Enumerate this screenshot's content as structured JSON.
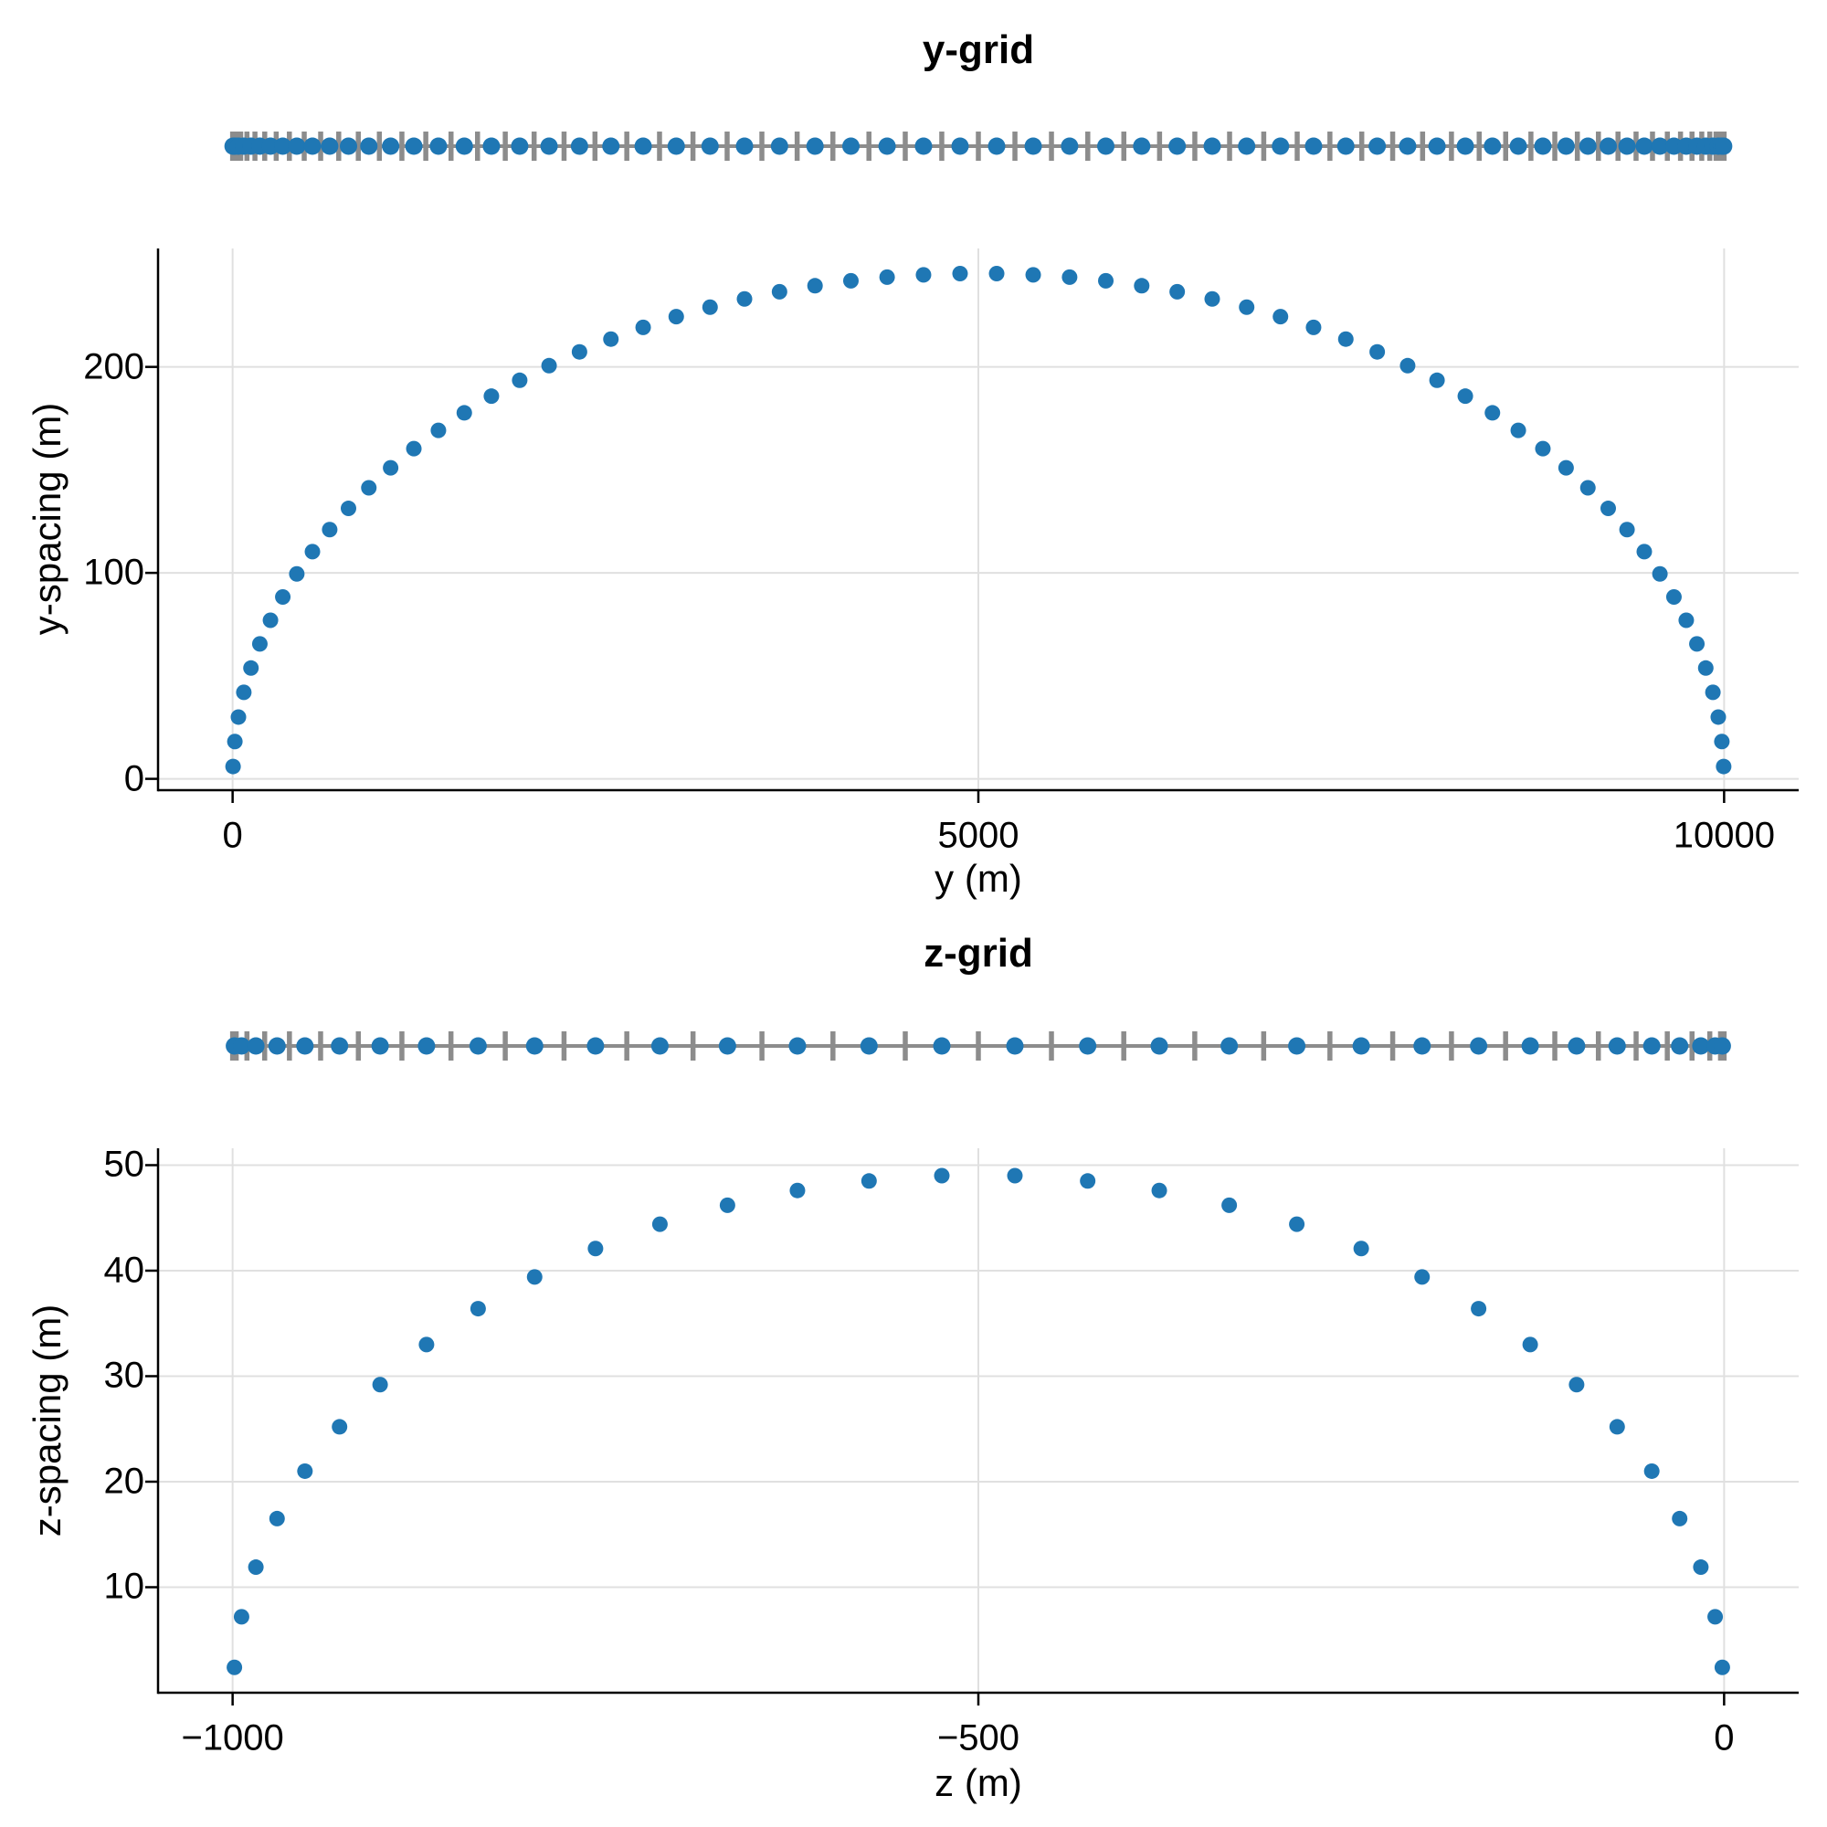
{
  "colors": {
    "marker": "#1f77b4",
    "strip_gray": "#8c8c8c",
    "gridline": "#e0e0e0",
    "axis": "#000000",
    "text": "#000000",
    "background": "#ffffff"
  },
  "chart_data": [
    {
      "type": "scatter",
      "title": "y-grid",
      "xlabel": "y (m)",
      "ylabel": "y-spacing (m)",
      "xlim": [
        -500,
        10500
      ],
      "ylim": [
        -5.5,
        257.5
      ],
      "xticks": [
        0,
        5000,
        10000
      ],
      "xtick_labels": [
        "0",
        "5000",
        "10000"
      ],
      "yticks": [
        0,
        100,
        200
      ],
      "ytick_labels": [
        "0",
        "100",
        "200"
      ],
      "grid": true,
      "legend": null,
      "x": [
        3.0,
        15.1,
        39.1,
        75.1,
        123.0,
        182.6,
        253.8,
        336.4,
        430.3,
        535.2,
        650.9,
        777.0,
        913.3,
        1059.5,
        1215.1,
        1379.9,
        1553.4,
        1735.1,
        1924.8,
        2121.8,
        2325.8,
        2536.3,
        2752.6,
        2974.4,
        3201.1,
        3432.1,
        3666.9,
        3904.9,
        4145.5,
        4388.2,
        4632.3,
        4877.4,
        5122.6,
        5367.7,
        5611.8,
        5854.5,
        6095.1,
        6333.1,
        6567.9,
        6798.9,
        7025.6,
        7247.4,
        7463.7,
        7674.2,
        7878.2,
        8075.2,
        8264.9,
        8446.7,
        8620.1,
        8784.9,
        8940.5,
        9086.7,
        9223.0,
        9349.1,
        9464.8,
        9569.7,
        9663.6,
        9746.2,
        9817.4,
        9877.0,
        9924.9,
        9960.9,
        9984.9,
        9997.0
      ],
      "y": [
        6.0,
        18.1,
        30.0,
        42.0,
        53.8,
        65.5,
        77.0,
        88.3,
        99.5,
        110.3,
        121.0,
        131.3,
        141.3,
        151.0,
        160.3,
        169.2,
        177.7,
        185.8,
        193.5,
        200.6,
        207.3,
        213.5,
        219.2,
        224.4,
        229.0,
        233.0,
        236.5,
        239.4,
        241.8,
        243.6,
        244.7,
        245.3,
        245.3,
        244.7,
        243.6,
        241.8,
        239.4,
        236.5,
        233.0,
        229.0,
        224.4,
        219.2,
        213.5,
        207.3,
        200.6,
        193.5,
        185.8,
        177.7,
        169.2,
        160.3,
        151.0,
        141.3,
        131.3,
        121.0,
        110.3,
        99.5,
        88.3,
        77.0,
        65.5,
        53.8,
        42.0,
        30.0,
        18.1,
        6.0
      ],
      "grid_edges": [
        0,
        6.0,
        24.1,
        54.1,
        96.1,
        149.8,
        215.3,
        292.3,
        380.6,
        480.1,
        590.4,
        711.4,
        842.7,
        984.0,
        1135.0,
        1295.3,
        1464.5,
        1642.2,
        1828.1,
        2021.5,
        2222.2,
        2429.5,
        2643.0,
        2862.3,
        3086.6,
        3315.6,
        3548.6,
        3785.1,
        4024.6,
        4266.4,
        4509.9,
        4754.7,
        5000.0,
        5245.3,
        5490.1,
        5733.6,
        5975.4,
        6214.9,
        6451.4,
        6684.4,
        6913.4,
        7137.7,
        7357.0,
        7570.5,
        7777.8,
        7978.5,
        8171.9,
        8357.8,
        8535.5,
        8704.7,
        8865.0,
        9016.0,
        9157.3,
        9288.6,
        9409.6,
        9519.9,
        9619.4,
        9707.7,
        9784.7,
        9850.2,
        9903.9,
        9945.9,
        9975.9,
        9994.0,
        10000
      ]
    },
    {
      "type": "scatter",
      "title": "z-grid",
      "xlabel": "z (m)",
      "ylabel": "z-spacing (m)",
      "xlim": [
        -1050,
        50
      ],
      "ylim": [
        0,
        51.6
      ],
      "xticks": [
        -1000,
        -500,
        0
      ],
      "xtick_labels": [
        "−1000",
        "−500",
        "0"
      ],
      "yticks": [
        10,
        20,
        30,
        40,
        50
      ],
      "ytick_labels": [
        "10",
        "20",
        "30",
        "40",
        "50"
      ],
      "grid": true,
      "legend": null,
      "x": [
        -998.8,
        -994.0,
        -984.4,
        -970.2,
        -951.5,
        -928.3,
        -901.1,
        -870.0,
        -835.4,
        -797.5,
        -756.7,
        -713.5,
        -668.2,
        -621.3,
        -573.3,
        -524.5,
        -475.5,
        -426.7,
        -378.7,
        -331.8,
        -286.5,
        -243.3,
        -202.5,
        -164.6,
        -130.0,
        -98.9,
        -71.7,
        -48.5,
        -29.8,
        -15.6,
        -6.0,
        -1.2
      ],
      "y": [
        2.4,
        7.2,
        11.9,
        16.5,
        21.0,
        25.2,
        29.2,
        33.0,
        36.4,
        39.4,
        42.1,
        44.4,
        46.2,
        47.6,
        48.5,
        49.0,
        49.0,
        48.5,
        47.6,
        46.2,
        44.4,
        42.1,
        39.4,
        36.4,
        33.0,
        29.2,
        25.2,
        21.0,
        16.5,
        11.9,
        7.2,
        2.4
      ],
      "grid_edges": [
        -1000,
        -997.6,
        -990.4,
        -978.5,
        -961.9,
        -941.0,
        -915.7,
        -886.5,
        -853.6,
        -817.2,
        -777.8,
        -735.7,
        -691.3,
        -645.1,
        -597.5,
        -549.0,
        -500.0,
        -451.0,
        -402.5,
        -354.9,
        -308.7,
        -264.3,
        -222.2,
        -182.8,
        -146.5,
        -113.5,
        -84.3,
        -59.0,
        -38.1,
        -21.5,
        -9.6,
        -2.4,
        0
      ]
    }
  ]
}
